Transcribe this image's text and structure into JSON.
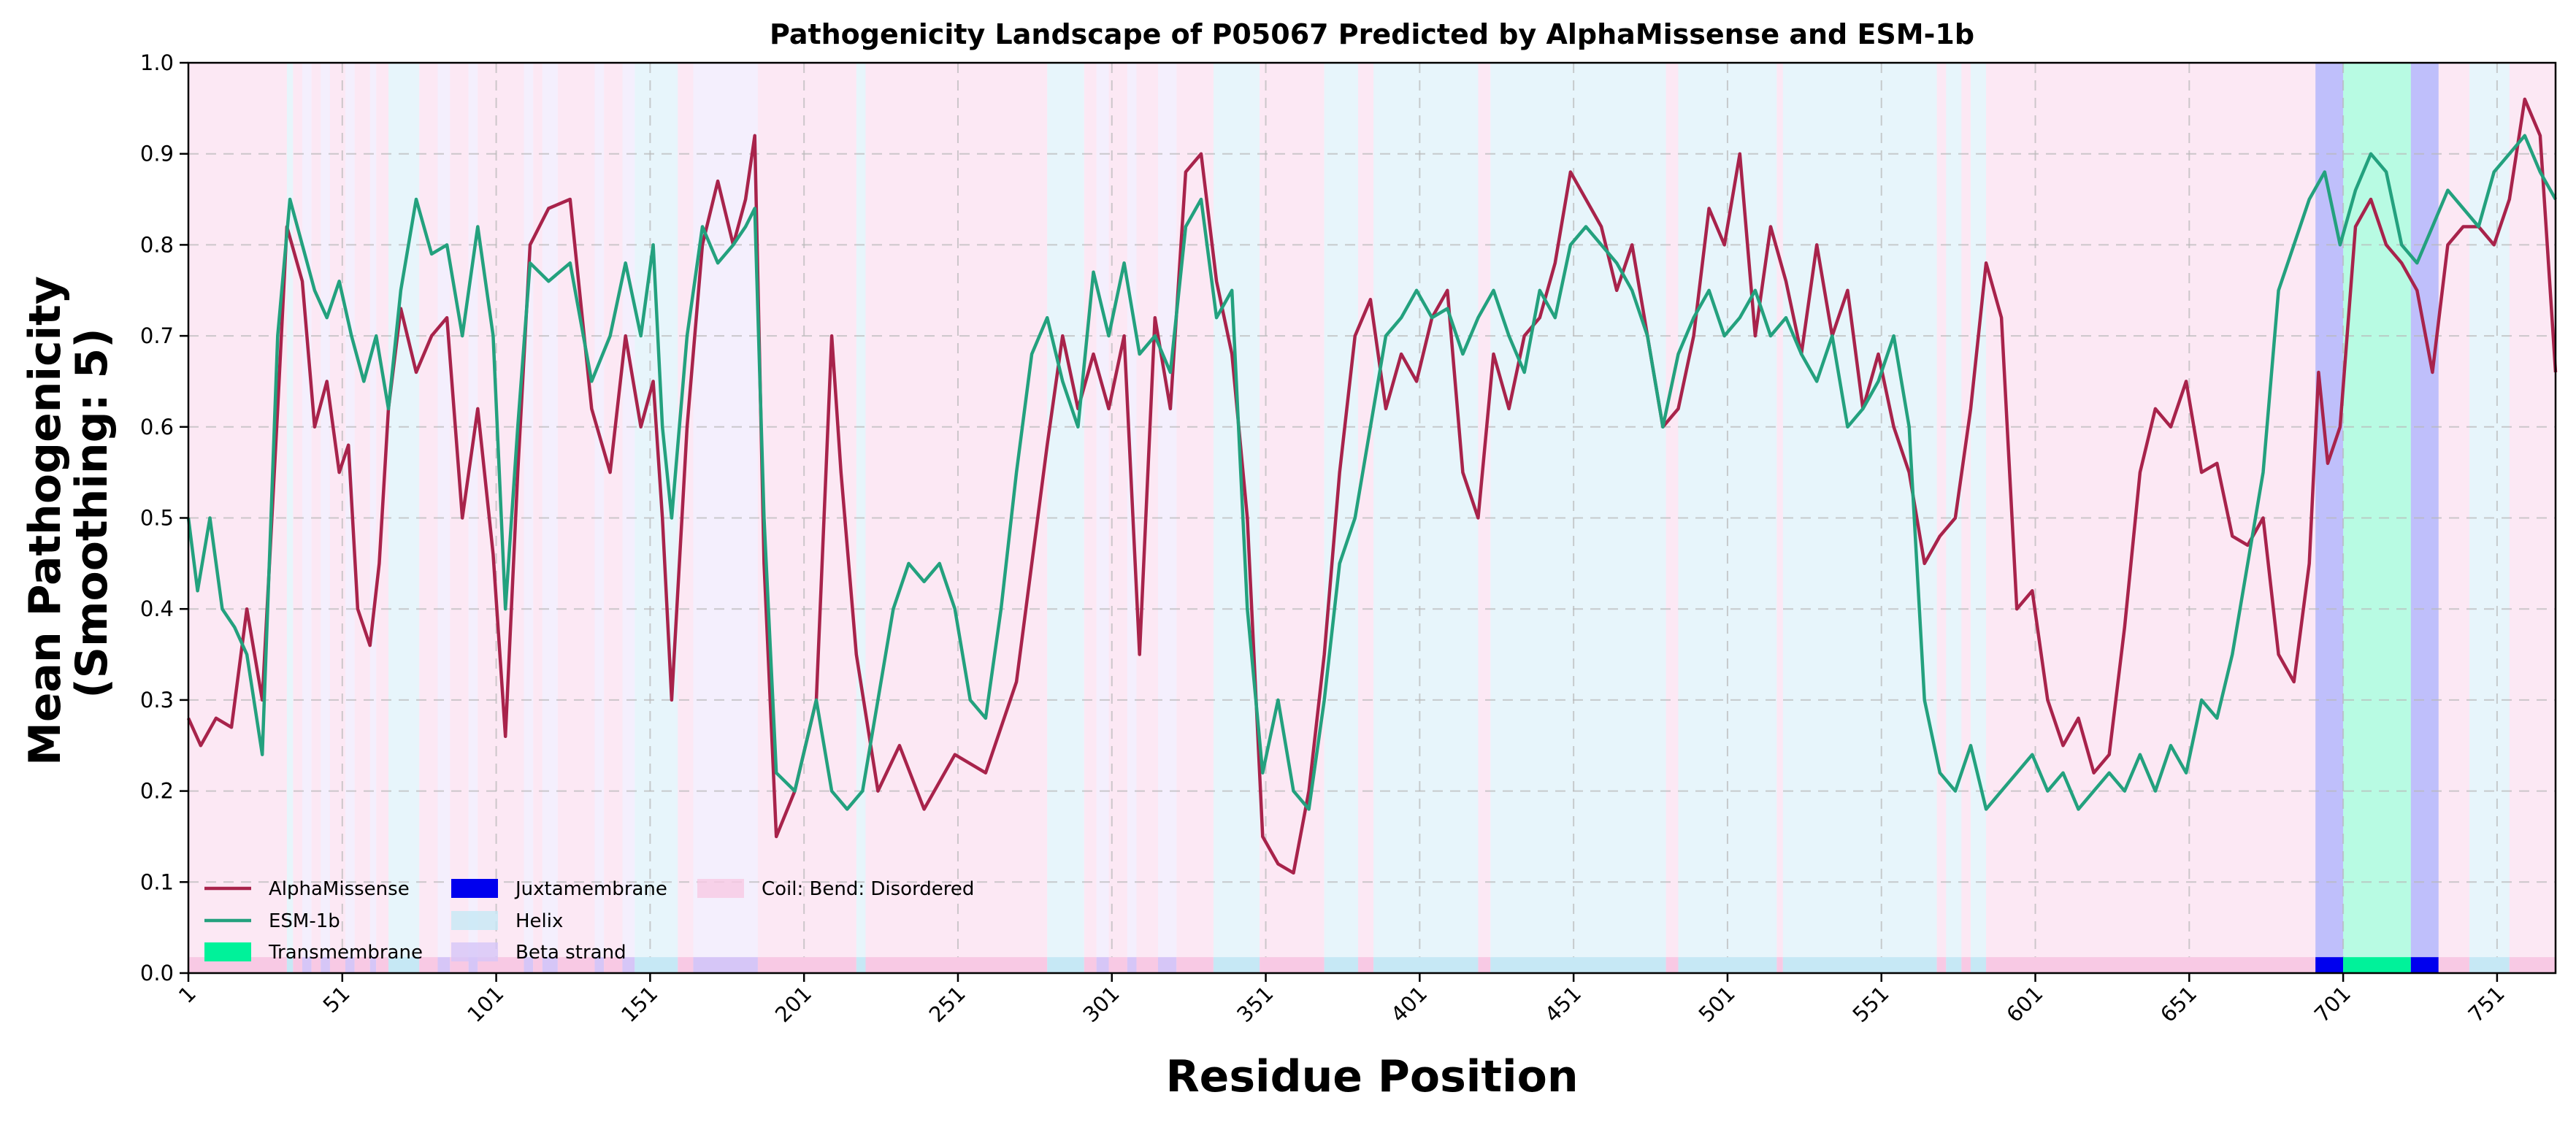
{
  "chart_data": {
    "type": "line",
    "title": "Pathogenicity Landscape of P05067 Predicted by AlphaMissense and ESM-1b",
    "xlabel": "Residue Position",
    "ylabel_lines": [
      "Mean Pathogenicity",
      "(Smoothing: 5)"
    ],
    "xlim": [
      1,
      770
    ],
    "ylim": [
      0.0,
      1.0
    ],
    "xticks": [
      1,
      51,
      101,
      151,
      201,
      251,
      301,
      351,
      401,
      451,
      501,
      551,
      601,
      651,
      701,
      751
    ],
    "yticks": [
      0.0,
      0.1,
      0.2,
      0.3,
      0.4,
      0.5,
      0.6,
      0.7,
      0.8,
      0.9,
      1.0
    ],
    "ytick_labels": [
      "0.0",
      "0.1",
      "0.2",
      "0.3",
      "0.4",
      "0.5",
      "0.6",
      "0.7",
      "0.8",
      "0.9",
      "1.0"
    ],
    "grid": true,
    "legend_placement": "lower-left",
    "series": [
      {
        "name": "AlphaMissense",
        "color": "#a8234b",
        "x": [
          1,
          5,
          10,
          15,
          20,
          25,
          30,
          33,
          38,
          42,
          46,
          50,
          53,
          56,
          60,
          63,
          66,
          70,
          75,
          80,
          85,
          90,
          95,
          100,
          104,
          108,
          112,
          118,
          125,
          132,
          138,
          143,
          148,
          152,
          155,
          158,
          163,
          168,
          173,
          178,
          182,
          185,
          188,
          192,
          198,
          205,
          210,
          213,
          218,
          225,
          232,
          240,
          250,
          260,
          270,
          275,
          280,
          285,
          290,
          295,
          300,
          305,
          310,
          315,
          320,
          325,
          330,
          335,
          340,
          345,
          350,
          355,
          360,
          365,
          370,
          375,
          380,
          385,
          390,
          395,
          400,
          405,
          410,
          415,
          420,
          425,
          430,
          435,
          440,
          445,
          450,
          455,
          460,
          465,
          470,
          475,
          480,
          485,
          490,
          495,
          500,
          505,
          510,
          515,
          520,
          525,
          530,
          535,
          540,
          545,
          550,
          555,
          560,
          565,
          570,
          575,
          580,
          585,
          590,
          595,
          600,
          605,
          610,
          615,
          620,
          625,
          630,
          635,
          640,
          645,
          650,
          655,
          660,
          665,
          670,
          675,
          680,
          685,
          690,
          693,
          696,
          700,
          705,
          710,
          715,
          720,
          725,
          730,
          735,
          740,
          745,
          750,
          755,
          760,
          765,
          770
        ],
        "values": [
          0.28,
          0.25,
          0.28,
          0.27,
          0.4,
          0.3,
          0.62,
          0.82,
          0.76,
          0.6,
          0.65,
          0.55,
          0.58,
          0.4,
          0.36,
          0.45,
          0.62,
          0.73,
          0.66,
          0.7,
          0.72,
          0.5,
          0.62,
          0.46,
          0.26,
          0.55,
          0.8,
          0.84,
          0.85,
          0.62,
          0.55,
          0.7,
          0.6,
          0.65,
          0.5,
          0.3,
          0.6,
          0.8,
          0.87,
          0.8,
          0.85,
          0.92,
          0.45,
          0.15,
          0.2,
          0.3,
          0.7,
          0.55,
          0.35,
          0.2,
          0.25,
          0.18,
          0.24,
          0.22,
          0.32,
          0.45,
          0.58,
          0.7,
          0.62,
          0.68,
          0.62,
          0.7,
          0.35,
          0.72,
          0.62,
          0.88,
          0.9,
          0.76,
          0.68,
          0.5,
          0.15,
          0.12,
          0.11,
          0.2,
          0.35,
          0.55,
          0.7,
          0.74,
          0.62,
          0.68,
          0.65,
          0.72,
          0.75,
          0.55,
          0.5,
          0.68,
          0.62,
          0.7,
          0.72,
          0.78,
          0.88,
          0.85,
          0.82,
          0.75,
          0.8,
          0.7,
          0.6,
          0.62,
          0.7,
          0.84,
          0.8,
          0.9,
          0.7,
          0.82,
          0.76,
          0.68,
          0.8,
          0.7,
          0.75,
          0.62,
          0.68,
          0.6,
          0.55,
          0.45,
          0.48,
          0.5,
          0.62,
          0.78,
          0.72,
          0.4,
          0.42,
          0.3,
          0.25,
          0.28,
          0.22,
          0.24,
          0.38,
          0.55,
          0.62,
          0.6,
          0.65,
          0.55,
          0.56,
          0.48,
          0.47,
          0.5,
          0.35,
          0.32,
          0.45,
          0.66,
          0.56,
          0.6,
          0.82,
          0.85,
          0.8,
          0.78,
          0.75,
          0.66,
          0.8,
          0.82,
          0.82,
          0.8,
          0.85,
          0.96,
          0.92,
          0.66
        ]
      },
      {
        "name": "ESM-1b",
        "color": "#23a17e",
        "x": [
          1,
          4,
          8,
          12,
          16,
          20,
          25,
          30,
          34,
          38,
          42,
          46,
          50,
          54,
          58,
          62,
          66,
          70,
          75,
          80,
          85,
          90,
          95,
          100,
          104,
          108,
          112,
          118,
          125,
          132,
          138,
          143,
          148,
          152,
          155,
          158,
          163,
          168,
          173,
          178,
          182,
          185,
          188,
          192,
          198,
          205,
          210,
          215,
          220,
          225,
          230,
          235,
          240,
          245,
          250,
          255,
          260,
          265,
          270,
          275,
          280,
          285,
          290,
          295,
          300,
          305,
          310,
          315,
          320,
          325,
          330,
          335,
          340,
          345,
          350,
          355,
          360,
          365,
          370,
          375,
          380,
          385,
          390,
          395,
          400,
          405,
          410,
          415,
          420,
          425,
          430,
          435,
          440,
          445,
          450,
          455,
          460,
          465,
          470,
          475,
          480,
          485,
          490,
          495,
          500,
          505,
          510,
          515,
          520,
          525,
          530,
          535,
          540,
          545,
          550,
          555,
          560,
          565,
          570,
          575,
          580,
          585,
          590,
          595,
          600,
          605,
          610,
          615,
          620,
          625,
          630,
          635,
          640,
          645,
          650,
          655,
          660,
          665,
          670,
          675,
          680,
          685,
          690,
          695,
          700,
          705,
          710,
          715,
          720,
          725,
          730,
          735,
          740,
          745,
          750,
          755,
          760,
          765,
          770
        ],
        "values": [
          0.5,
          0.42,
          0.5,
          0.4,
          0.38,
          0.35,
          0.24,
          0.7,
          0.85,
          0.8,
          0.75,
          0.72,
          0.76,
          0.7,
          0.65,
          0.7,
          0.62,
          0.75,
          0.85,
          0.79,
          0.8,
          0.7,
          0.82,
          0.7,
          0.4,
          0.6,
          0.78,
          0.76,
          0.78,
          0.65,
          0.7,
          0.78,
          0.7,
          0.8,
          0.6,
          0.5,
          0.7,
          0.82,
          0.78,
          0.8,
          0.82,
          0.84,
          0.5,
          0.22,
          0.2,
          0.3,
          0.2,
          0.18,
          0.2,
          0.3,
          0.4,
          0.45,
          0.43,
          0.45,
          0.4,
          0.3,
          0.28,
          0.4,
          0.55,
          0.68,
          0.72,
          0.65,
          0.6,
          0.77,
          0.7,
          0.78,
          0.68,
          0.7,
          0.66,
          0.82,
          0.85,
          0.72,
          0.75,
          0.4,
          0.22,
          0.3,
          0.2,
          0.18,
          0.3,
          0.45,
          0.5,
          0.6,
          0.7,
          0.72,
          0.75,
          0.72,
          0.73,
          0.68,
          0.72,
          0.75,
          0.7,
          0.66,
          0.75,
          0.72,
          0.8,
          0.82,
          0.8,
          0.78,
          0.75,
          0.7,
          0.6,
          0.68,
          0.72,
          0.75,
          0.7,
          0.72,
          0.75,
          0.7,
          0.72,
          0.68,
          0.65,
          0.7,
          0.6,
          0.62,
          0.65,
          0.7,
          0.6,
          0.3,
          0.22,
          0.2,
          0.25,
          0.18,
          0.2,
          0.22,
          0.24,
          0.2,
          0.22,
          0.18,
          0.2,
          0.22,
          0.2,
          0.24,
          0.2,
          0.25,
          0.22,
          0.3,
          0.28,
          0.35,
          0.45,
          0.55,
          0.75,
          0.8,
          0.85,
          0.88,
          0.8,
          0.86,
          0.9,
          0.88,
          0.8,
          0.78,
          0.82,
          0.86,
          0.84,
          0.82,
          0.88,
          0.9,
          0.92,
          0.88,
          0.85
        ]
      }
    ],
    "regions": [
      {
        "type": "coil",
        "start": 1,
        "end": 33
      },
      {
        "type": "helix",
        "start": 33,
        "end": 35
      },
      {
        "type": "coil",
        "start": 35,
        "end": 38
      },
      {
        "type": "beta",
        "start": 38,
        "end": 41
      },
      {
        "type": "coil",
        "start": 41,
        "end": 44
      },
      {
        "type": "beta",
        "start": 44,
        "end": 47
      },
      {
        "type": "coil",
        "start": 47,
        "end": 52
      },
      {
        "type": "beta",
        "start": 52,
        "end": 55
      },
      {
        "type": "coil",
        "start": 55,
        "end": 60
      },
      {
        "type": "beta",
        "start": 60,
        "end": 62
      },
      {
        "type": "coil",
        "start": 62,
        "end": 66
      },
      {
        "type": "helix",
        "start": 66,
        "end": 76
      },
      {
        "type": "coil",
        "start": 76,
        "end": 82
      },
      {
        "type": "beta",
        "start": 82,
        "end": 86
      },
      {
        "type": "coil",
        "start": 86,
        "end": 92
      },
      {
        "type": "beta",
        "start": 92,
        "end": 95
      },
      {
        "type": "coil",
        "start": 95,
        "end": 110
      },
      {
        "type": "beta",
        "start": 110,
        "end": 113
      },
      {
        "type": "coil",
        "start": 113,
        "end": 116
      },
      {
        "type": "beta",
        "start": 116,
        "end": 121
      },
      {
        "type": "coil",
        "start": 121,
        "end": 133
      },
      {
        "type": "beta",
        "start": 133,
        "end": 136
      },
      {
        "type": "coil",
        "start": 136,
        "end": 142
      },
      {
        "type": "beta",
        "start": 142,
        "end": 146
      },
      {
        "type": "helix",
        "start": 146,
        "end": 160
      },
      {
        "type": "coil",
        "start": 160,
        "end": 165
      },
      {
        "type": "beta",
        "start": 165,
        "end": 186
      },
      {
        "type": "coil",
        "start": 186,
        "end": 218
      },
      {
        "type": "helix",
        "start": 218,
        "end": 221
      },
      {
        "type": "coil",
        "start": 221,
        "end": 280
      },
      {
        "type": "helix",
        "start": 280,
        "end": 292
      },
      {
        "type": "coil",
        "start": 292,
        "end": 296
      },
      {
        "type": "beta",
        "start": 296,
        "end": 300
      },
      {
        "type": "coil",
        "start": 300,
        "end": 306
      },
      {
        "type": "beta",
        "start": 306,
        "end": 309
      },
      {
        "type": "coil",
        "start": 309,
        "end": 316
      },
      {
        "type": "beta",
        "start": 316,
        "end": 322
      },
      {
        "type": "coil",
        "start": 322,
        "end": 334
      },
      {
        "type": "helix",
        "start": 334,
        "end": 349
      },
      {
        "type": "coil",
        "start": 349,
        "end": 370
      },
      {
        "type": "helix",
        "start": 370,
        "end": 381
      },
      {
        "type": "coil",
        "start": 381,
        "end": 386
      },
      {
        "type": "helix",
        "start": 386,
        "end": 420
      },
      {
        "type": "coil",
        "start": 420,
        "end": 424
      },
      {
        "type": "helix",
        "start": 424,
        "end": 481
      },
      {
        "type": "coil",
        "start": 481,
        "end": 485
      },
      {
        "type": "helix",
        "start": 485,
        "end": 517
      },
      {
        "type": "coil",
        "start": 517,
        "end": 519
      },
      {
        "type": "helix",
        "start": 519,
        "end": 569
      },
      {
        "type": "coil",
        "start": 569,
        "end": 572
      },
      {
        "type": "helix",
        "start": 572,
        "end": 577
      },
      {
        "type": "coil",
        "start": 577,
        "end": 580
      },
      {
        "type": "helix",
        "start": 580,
        "end": 585
      },
      {
        "type": "coil",
        "start": 585,
        "end": 692
      },
      {
        "type": "juxta",
        "start": 692,
        "end": 701
      },
      {
        "type": "tm",
        "start": 701,
        "end": 723
      },
      {
        "type": "juxta",
        "start": 723,
        "end": 732
      },
      {
        "type": "coil",
        "start": 732,
        "end": 742
      },
      {
        "type": "helix",
        "start": 742,
        "end": 755
      },
      {
        "type": "coil",
        "start": 755,
        "end": 770
      }
    ],
    "region_styles": {
      "helix": {
        "color": "#c6e8f5",
        "label": "Helix"
      },
      "beta": {
        "color": "#d6c6f7",
        "label": "Beta strand"
      },
      "coil": {
        "color": "#f8c9e4",
        "label": "Coil: Bend: Disordered"
      },
      "tm": {
        "color": "#00f29a",
        "label": "Transmembrane"
      },
      "juxta": {
        "color": "#0000ee",
        "label": "Juxtamembrane"
      }
    },
    "legend": {
      "lines": [
        "AlphaMissense",
        "ESM-1b"
      ],
      "patches": [
        "tm",
        "juxta",
        "helix",
        "beta",
        "coil"
      ]
    }
  }
}
